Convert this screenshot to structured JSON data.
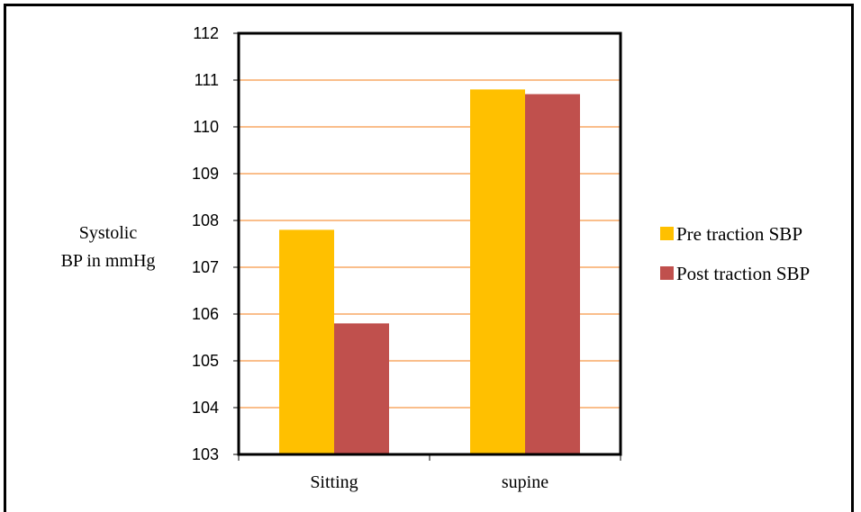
{
  "chart_data": {
    "type": "bar",
    "categories": [
      "Sitting",
      "supine"
    ],
    "series": [
      {
        "name": "Pre traction SBP",
        "values": [
          107.8,
          110.8
        ],
        "color": "#FFC000"
      },
      {
        "name": "Post traction SBP",
        "values": [
          105.8,
          110.7
        ],
        "color": "#C0504D"
      }
    ],
    "ylabel_lines": [
      "Systolic",
      "BP in mmHg"
    ],
    "ylim": [
      103,
      112
    ],
    "yticks": [
      103,
      104,
      105,
      106,
      107,
      108,
      109,
      110,
      111,
      112
    ],
    "grid": true,
    "grid_color": "#F79646",
    "legend_position": "right"
  }
}
